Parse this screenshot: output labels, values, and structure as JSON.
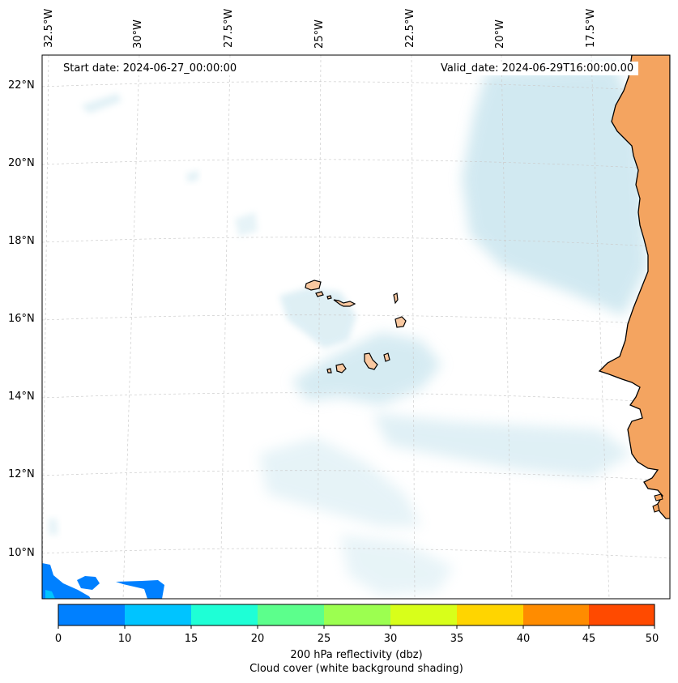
{
  "map": {
    "start_date": "Start date: 2024-06-27_00:00:00",
    "valid_date": "Valid_date: 2024-06-29T16:00:00.00",
    "lon_labels": [
      "32.5°W",
      "30°W",
      "27.5°W",
      "25°W",
      "22.5°W",
      "20°W",
      "17.5°W"
    ],
    "lat_labels": [
      "22°N",
      "20°N",
      "18°N",
      "16°N",
      "14°N",
      "12°N",
      "10°N"
    ],
    "colors": {
      "land": "#f4a460",
      "island_fill": "#f9c8a0",
      "cloud": "#add8e6",
      "gridline": "#cccccc",
      "coastline": "#000000"
    }
  },
  "colorbar": {
    "ticks": [
      "0",
      "10",
      "15",
      "20",
      "25",
      "30",
      "35",
      "40",
      "45",
      "50"
    ],
    "colors": [
      "#0080ff",
      "#00c4ff",
      "#1effd6",
      "#5cff8c",
      "#9cff50",
      "#d8ff1a",
      "#ffd500",
      "#ff8c00",
      "#ff4a00"
    ],
    "label_line1": "200 hPa reflectivity (dbz)",
    "label_line2": "Cloud cover (white background shading)"
  }
}
